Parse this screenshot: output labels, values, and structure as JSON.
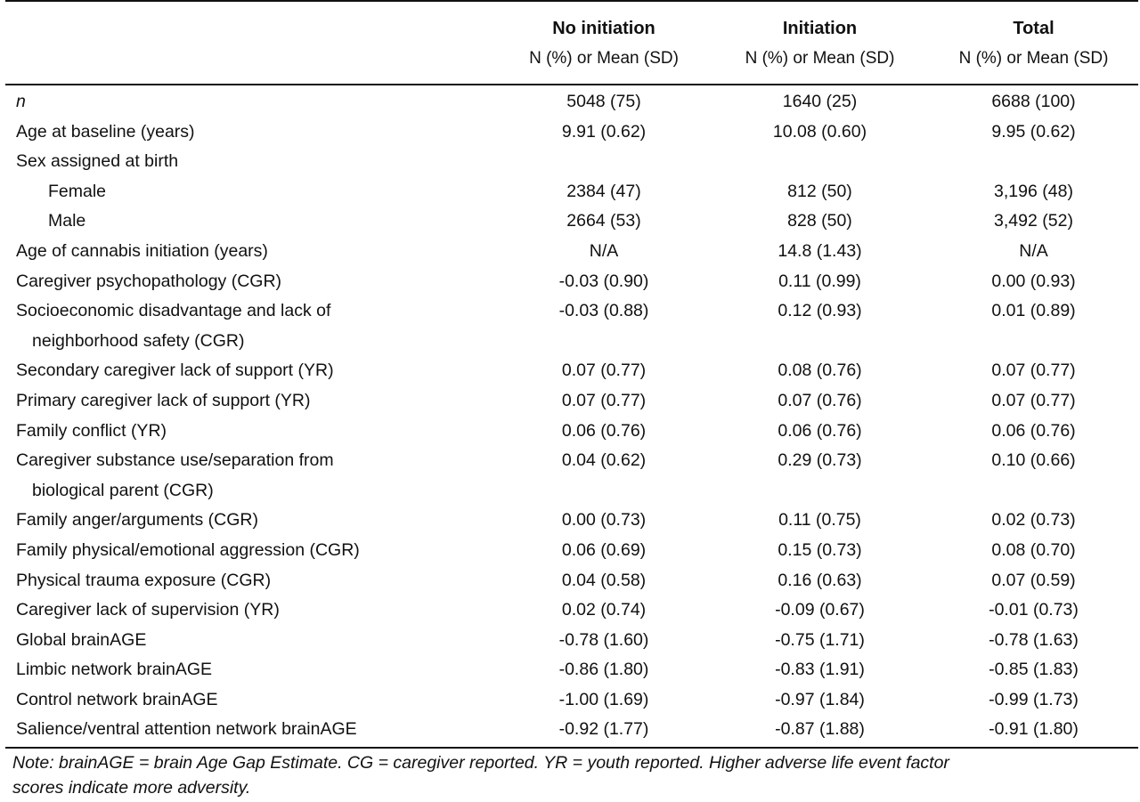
{
  "columns": [
    {
      "title": "",
      "subtitle": ""
    },
    {
      "title": "No initiation",
      "subtitle": "N (%) or Mean (SD)"
    },
    {
      "title": "Initiation",
      "subtitle": "N (%) or Mean (SD)"
    },
    {
      "title": "Total",
      "subtitle": "N (%) or Mean (SD)"
    }
  ],
  "rows": [
    {
      "label": "n",
      "no_init": "5048 (75)",
      "init": "1640 (25)",
      "total": "6688 (100)"
    },
    {
      "label": "Age at baseline (years)",
      "no_init": "9.91 (0.62)",
      "init": "10.08 (0.60)",
      "total": "9.95 (0.62)"
    },
    {
      "label": "Sex assigned at birth",
      "no_init": "",
      "init": "",
      "total": ""
    },
    {
      "label": "Female",
      "no_init": "2384 (47)",
      "init": "812 (50)",
      "total": "3,196 (48)"
    },
    {
      "label": "Male",
      "no_init": "2664 (53)",
      "init": "828 (50)",
      "total": "3,492 (52)"
    },
    {
      "label": "Age of cannabis initiation (years)",
      "no_init": "N/A",
      "init": "14.8 (1.43)",
      "total": "N/A"
    },
    {
      "label": "Caregiver psychopathology (CGR)",
      "no_init": "-0.03 (0.90)",
      "init": "0.11 (0.99)",
      "total": "0.00 (0.93)"
    },
    {
      "label": "Socioeconomic disadvantage and lack of",
      "label2": "neighborhood safety (CGR)",
      "no_init": "-0.03 (0.88)",
      "init": "0.12 (0.93)",
      "total": "0.01 (0.89)"
    },
    {
      "label": "Secondary caregiver lack of support (YR)",
      "no_init": "0.07 (0.77)",
      "init": "0.08 (0.76)",
      "total": "0.07 (0.77)"
    },
    {
      "label": "Primary caregiver lack of support (YR)",
      "no_init": "0.07 (0.77)",
      "init": "0.07 (0.76)",
      "total": "0.07 (0.77)"
    },
    {
      "label": "Family conflict (YR)",
      "no_init": "0.06 (0.76)",
      "init": "0.06 (0.76)",
      "total": "0.06 (0.76)"
    },
    {
      "label": "Caregiver substance use/separation from",
      "label2": "biological parent (CGR)",
      "no_init": "0.04 (0.62)",
      "init": "0.29 (0.73)",
      "total": "0.10 (0.66)"
    },
    {
      "label": "Family anger/arguments (CGR)",
      "no_init": "0.00 (0.73)",
      "init": "0.11 (0.75)",
      "total": "0.02 (0.73)"
    },
    {
      "label": "Family physical/emotional aggression (CGR)",
      "no_init": "0.06 (0.69)",
      "init": "0.15 (0.73)",
      "total": "0.08 (0.70)"
    },
    {
      "label": "Physical trauma exposure (CGR)",
      "no_init": "0.04 (0.58)",
      "init": "0.16 (0.63)",
      "total": "0.07 (0.59)"
    },
    {
      "label": "Caregiver lack of supervision (YR)",
      "no_init": "0.02 (0.74)",
      "init": "-0.09 (0.67)",
      "total": "-0.01 (0.73)"
    },
    {
      "label": "Global brainAGE",
      "no_init": "-0.78 (1.60)",
      "init": "-0.75 (1.71)",
      "total": "-0.78 (1.63)"
    },
    {
      "label": "Limbic network brainAGE",
      "no_init": "-0.86 (1.80)",
      "init": "-0.83 (1.91)",
      "total": "-0.85 (1.83)"
    },
    {
      "label": "Control network brainAGE",
      "no_init": "-1.00 (1.69)",
      "init": "-0.97 (1.84)",
      "total": "-0.99 (1.73)"
    },
    {
      "label": "Salience/ventral attention network brainAGE",
      "no_init": "-0.92 (1.77)",
      "init": "-0.87 (1.88)",
      "total": "-0.91 (1.80)"
    }
  ],
  "note": {
    "line1": "Note: brainAGE = brain Age Gap Estimate. CG = caregiver reported. YR = youth reported. Higher adverse life event factor",
    "line2": "scores indicate more adversity."
  }
}
